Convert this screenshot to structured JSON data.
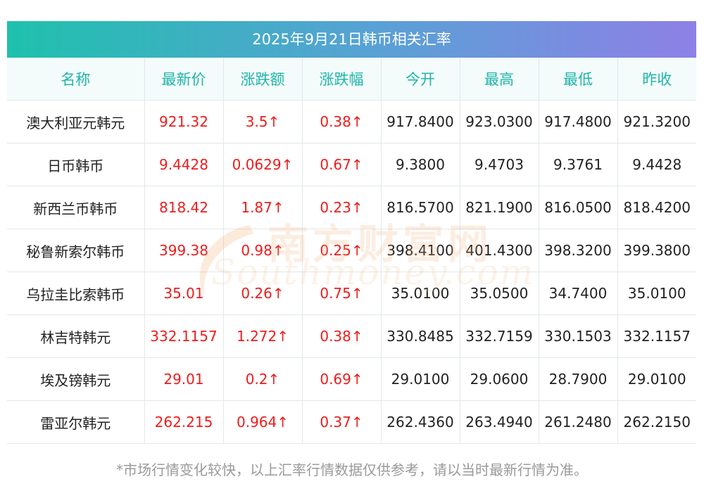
{
  "title": "2025年9月21日韩币相关汇率",
  "headers": [
    "名称",
    "最新价",
    "涨跌额",
    "涨跌幅",
    "今开",
    "最高",
    "最低",
    "昨收"
  ],
  "rows": [
    {
      "name": "澳大利亚元韩元",
      "latest": "921.32",
      "change": "3.5↑",
      "pct": "0.38↑",
      "open": "917.8400",
      "high": "923.0300",
      "low": "917.4800",
      "prev": "921.3200"
    },
    {
      "name": "日币韩币",
      "latest": "9.4428",
      "change": "0.0629↑",
      "pct": "0.67↑",
      "open": "9.3800",
      "high": "9.4703",
      "low": "9.3761",
      "prev": "9.4428"
    },
    {
      "name": "新西兰币韩币",
      "latest": "818.42",
      "change": "1.87↑",
      "pct": "0.23↑",
      "open": "816.5700",
      "high": "821.1900",
      "low": "816.0500",
      "prev": "818.4200"
    },
    {
      "name": "秘鲁新索尔韩币",
      "latest": "399.38",
      "change": "0.98↑",
      "pct": "0.25↑",
      "open": "398.4100",
      "high": "401.4300",
      "low": "398.3200",
      "prev": "399.3800"
    },
    {
      "name": "乌拉圭比索韩币",
      "latest": "35.01",
      "change": "0.26↑",
      "pct": "0.75↑",
      "open": "35.0100",
      "high": "35.0500",
      "low": "34.7400",
      "prev": "35.0100"
    },
    {
      "name": "林吉特韩元",
      "latest": "332.1157",
      "change": "1.272↑",
      "pct": "0.38↑",
      "open": "330.8485",
      "high": "332.7159",
      "low": "330.1503",
      "prev": "332.1157"
    },
    {
      "name": "埃及镑韩元",
      "latest": "29.01",
      "change": "0.2↑",
      "pct": "0.69↑",
      "open": "29.0100",
      "high": "29.0600",
      "low": "28.7900",
      "prev": "29.0100"
    },
    {
      "name": "雷亚尔韩元",
      "latest": "262.215",
      "change": "0.964↑",
      "pct": "0.37↑",
      "open": "262.4360",
      "high": "263.4940",
      "low": "261.2480",
      "prev": "262.2150"
    }
  ],
  "footnote": "*市场行情变化较快，以上汇率行情数据仅供参考，请以当时最新行情为准。",
  "watermark": {
    "cn": "南方财富网",
    "en": "Southmoney.com"
  },
  "colors": {
    "up": "#ee1c1c",
    "header_text": "#1fb5a8",
    "title_gradient_start": "#1fc1ad",
    "title_gradient_end": "#8e80e6"
  }
}
